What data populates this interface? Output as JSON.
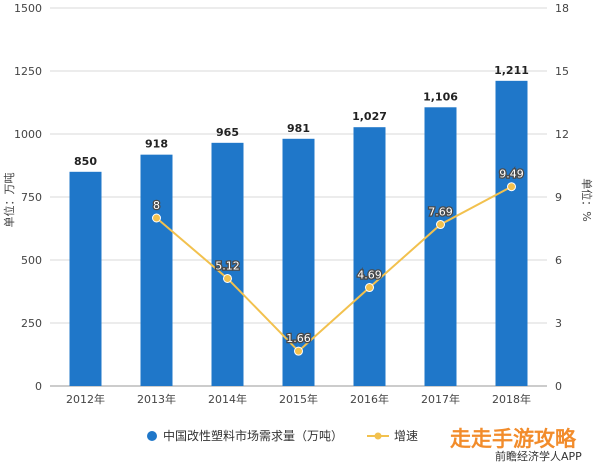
{
  "chart_data": {
    "type": "bar",
    "categories": [
      "2012年",
      "2013年",
      "2014年",
      "2015年",
      "2016年",
      "2017年",
      "2018年"
    ],
    "series": [
      {
        "name": "中国改性塑料市场需求量（万吨）",
        "type": "bar",
        "axis": "left",
        "values": [
          850,
          918,
          965,
          981,
          1027,
          1106,
          1211
        ],
        "labels": [
          "850",
          "918",
          "965",
          "981",
          "1,027",
          "1,106",
          "1,211"
        ]
      },
      {
        "name": "增速（%）",
        "legend_text": "增速",
        "type": "line",
        "axis": "right",
        "values": [
          null,
          8,
          5.12,
          1.66,
          4.69,
          7.69,
          9.49
        ],
        "labels": [
          "",
          "8",
          "5.12",
          "1.66",
          "4.69",
          "7.69",
          "9.49"
        ]
      }
    ],
    "ylabel": "单位：万吨",
    "ylabel_right": "单位：%",
    "ylim": [
      0,
      1500
    ],
    "ylim_right": [
      0,
      18
    ],
    "yticks": [
      "0",
      "250",
      "500",
      "750",
      "1000",
      "1250",
      "1500"
    ],
    "yticks_right": [
      "0",
      "3",
      "6",
      "9",
      "12",
      "15",
      "18"
    ],
    "grid": true,
    "legend_position": "bottom",
    "colors": {
      "bar": "#1f77c9",
      "line": "#f2c14e",
      "grid": "#d9d9d9"
    }
  },
  "footer": {
    "source": "前瞻经济学人APP",
    "watermark": "走走手游攻略"
  }
}
